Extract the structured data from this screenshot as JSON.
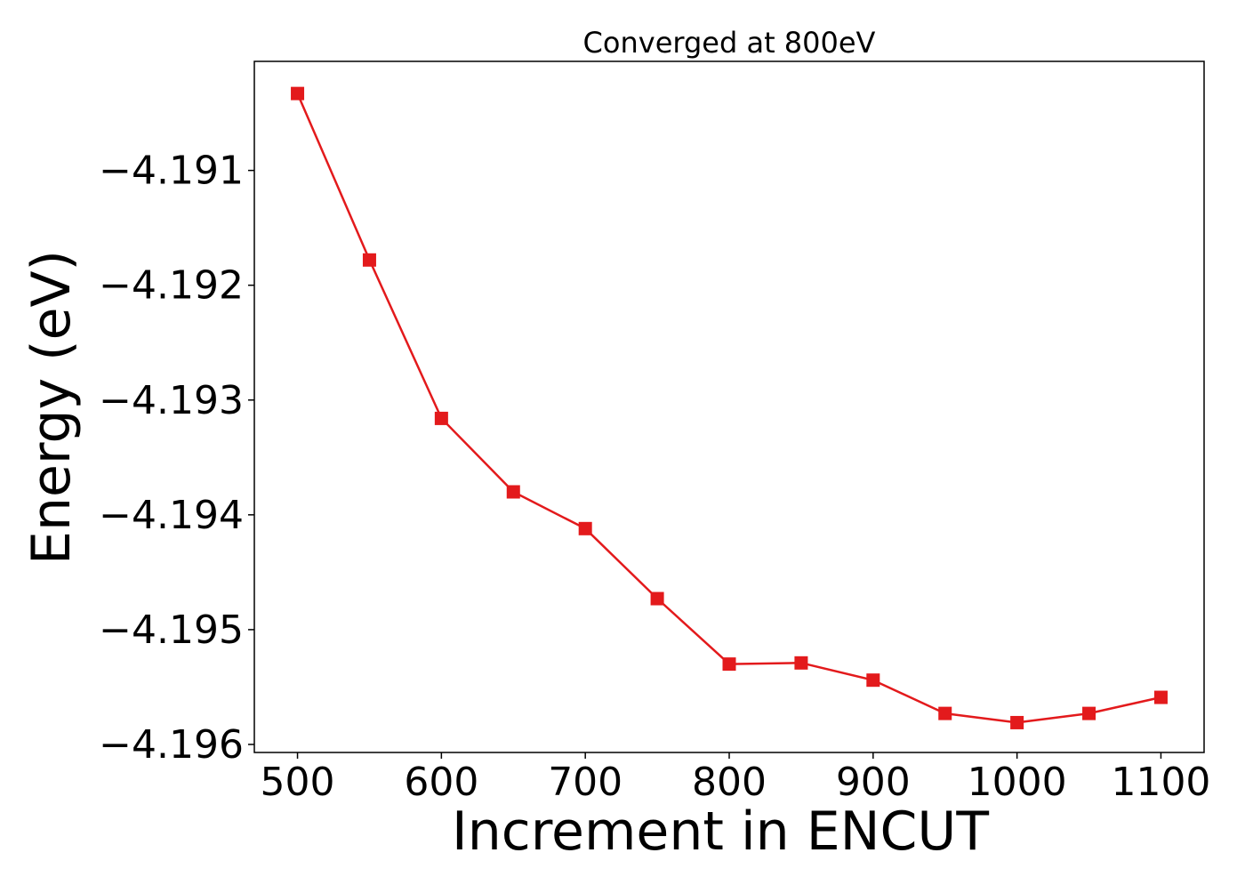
{
  "chart_data": {
    "type": "line",
    "title": "Converged at 800eV",
    "xlabel": "Increment in ENCUT",
    "ylabel": "Energy (eV)",
    "x": [
      500,
      550,
      600,
      650,
      700,
      750,
      800,
      850,
      900,
      950,
      1000,
      1050,
      1100
    ],
    "series": [
      {
        "values": [
          -4.19033,
          -4.19178,
          -4.19316,
          -4.1938,
          -4.19412,
          -4.19473,
          -4.1953,
          -4.19529,
          -4.19544,
          -4.19573,
          -4.19581,
          -4.19573,
          -4.19559
        ],
        "color": "#e31a1c",
        "marker": "square"
      }
    ],
    "xlim": [
      470,
      1130
    ],
    "ylim": [
      -4.19607,
      -4.19005
    ],
    "xticks": [
      500,
      600,
      700,
      800,
      900,
      1000,
      1100
    ],
    "xtick_labels": [
      "500",
      "600",
      "700",
      "800",
      "900",
      "1000",
      "1100"
    ],
    "yticks": [
      -4.191,
      -4.192,
      -4.193,
      -4.194,
      -4.195,
      -4.196
    ],
    "ytick_labels": [
      "−4.191",
      "−4.192",
      "−4.193",
      "−4.194",
      "−4.195",
      "−4.196"
    ],
    "grid": false,
    "legend": "none"
  }
}
